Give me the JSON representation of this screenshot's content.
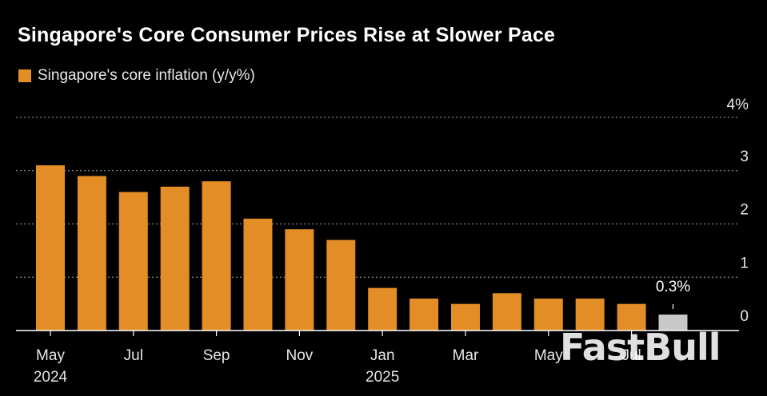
{
  "colors": {
    "bar": "#E28D25",
    "highlight_bar": "#C8C8C8",
    "background": "#000000",
    "grid": "#888888"
  },
  "chart_data": {
    "type": "bar",
    "title": "Singapore's Core Consumer Prices Rise at Slower Pace",
    "legend": "Singapore's core inflation (y/y%)",
    "categories": [
      "May 2024",
      "Jun 2024",
      "Jul 2024",
      "Aug 2024",
      "Sep 2024",
      "Oct 2024",
      "Nov 2024",
      "Dec 2024",
      "Jan 2025",
      "Feb 2025",
      "Mar 2025",
      "Apr 2025",
      "May 2025",
      "Jun 2025",
      "Jul 2025",
      "Aug 2025"
    ],
    "values": [
      3.1,
      2.9,
      2.6,
      2.7,
      2.8,
      2.1,
      1.9,
      1.7,
      0.8,
      0.6,
      0.5,
      0.7,
      0.6,
      0.6,
      0.5,
      0.3
    ],
    "highlight_index": 15,
    "annotation": "0.3%",
    "ylim": [
      0,
      4
    ],
    "y_ticks": [
      {
        "value": 0,
        "label": "0"
      },
      {
        "value": 1,
        "label": "1"
      },
      {
        "value": 2,
        "label": "2"
      },
      {
        "value": 3,
        "label": "3"
      },
      {
        "value": 4,
        "label": "4%"
      }
    ],
    "x_ticks": [
      {
        "index": 0,
        "label": "May",
        "year": "2024"
      },
      {
        "index": 2,
        "label": "Jul",
        "year": ""
      },
      {
        "index": 4,
        "label": "Sep",
        "year": ""
      },
      {
        "index": 6,
        "label": "Nov",
        "year": ""
      },
      {
        "index": 8,
        "label": "Jan",
        "year": "2025"
      },
      {
        "index": 10,
        "label": "Mar",
        "year": ""
      },
      {
        "index": 12,
        "label": "May",
        "year": ""
      },
      {
        "index": 14,
        "label": "Jul",
        "year": ""
      }
    ],
    "xlabel": "",
    "ylabel": ""
  },
  "watermark": "FastBull"
}
